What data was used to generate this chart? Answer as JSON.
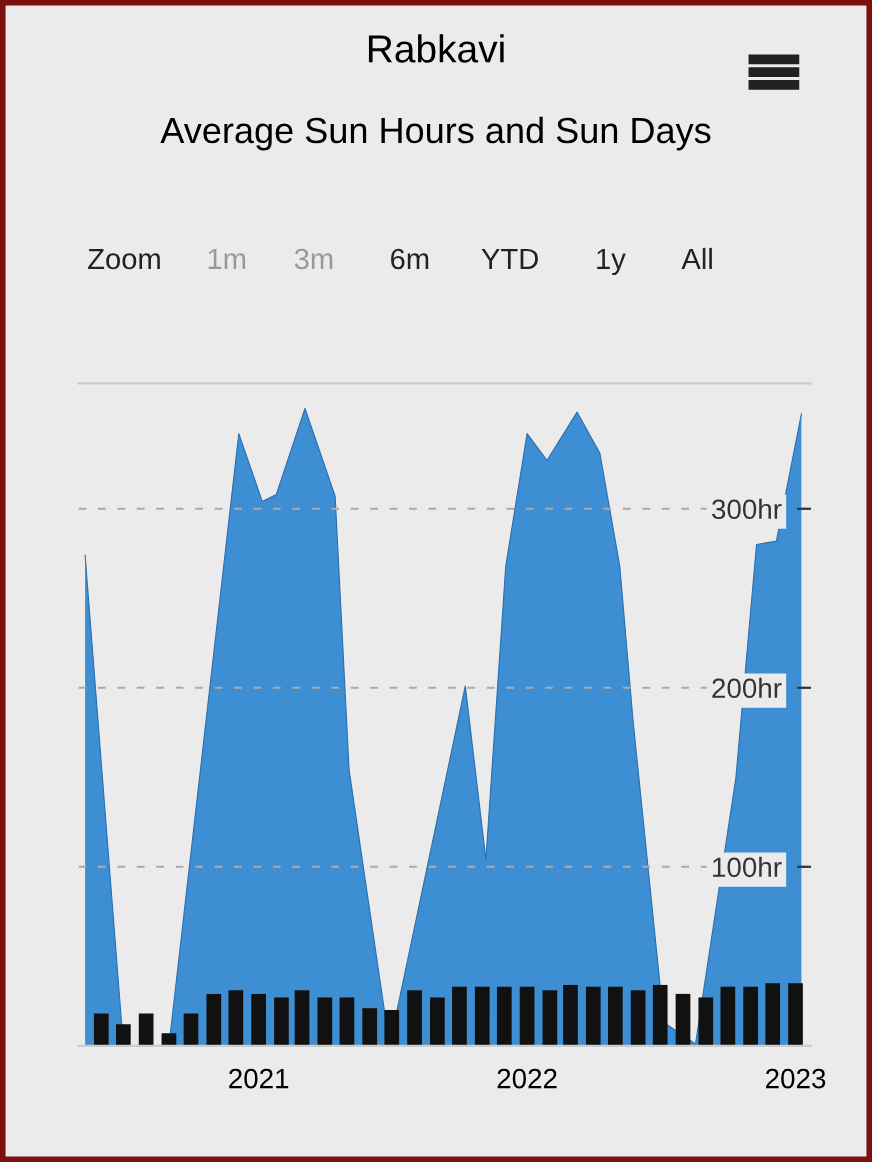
{
  "chart_data": {
    "type": "area",
    "title": "Rabkavi",
    "subtitle": "Average Sun Hours and Sun Days",
    "annotations": [
      "Zoom",
      "1m",
      "3m",
      "6m",
      "YTD",
      "1y",
      "All"
    ],
    "series": [
      {
        "color": "#3d8ed3",
        "x": [
          "2020-05-10",
          "2020-07-01",
          "2020-09-01",
          "2020-12-05",
          "2021-01-06",
          "2021-01-25",
          "2021-03-05",
          "2021-04-15",
          "2021-05-04",
          "2021-06-28",
          "2021-10-09",
          "2021-11-06",
          "2021-12-03",
          "2022-01-01",
          "2022-01-28",
          "2022-03-10",
          "2022-04-10",
          "2022-05-07",
          "2022-05-25",
          "2022-07-06",
          "2022-08-18",
          "2022-10-12",
          "2022-11-09",
          "2022-12-06",
          "2023-01-09"
        ],
        "values": [
          274,
          0,
          0,
          342,
          304,
          308,
          356,
          307,
          154,
          0,
          201,
          104,
          268,
          342,
          327,
          354,
          331,
          268,
          182,
          13,
          1,
          150,
          280,
          282,
          353
        ]
      },
      {
        "type": "bar",
        "color": "#111111",
        "x": [
          "2020-06-01",
          "2020-07-01",
          "2020-08-01",
          "2020-09-01",
          "2020-10-01",
          "2020-11-01",
          "2020-12-01",
          "2021-01-01",
          "2021-02-01",
          "2021-03-01",
          "2021-04-01",
          "2021-05-01",
          "2021-06-01",
          "2021-07-01",
          "2021-08-01",
          "2021-09-01",
          "2021-10-01",
          "2021-11-01",
          "2021-12-01",
          "2022-01-01",
          "2022-02-01",
          "2022-03-01",
          "2022-04-01",
          "2022-05-01",
          "2022-06-01",
          "2022-07-01",
          "2022-08-01",
          "2022-09-01",
          "2022-10-01",
          "2022-11-01",
          "2022-12-01",
          "2023-01-01"
        ],
        "values": [
          18,
          12,
          18,
          7,
          18,
          29,
          31,
          29,
          27,
          31,
          27,
          27,
          21,
          20,
          31,
          27,
          33,
          33,
          33,
          33,
          31,
          34,
          33,
          33,
          31,
          34,
          29,
          27,
          33,
          33,
          35,
          35
        ]
      }
    ],
    "xlim": [
      "2020-05-01",
      "2023-01-22"
    ],
    "xticks": [
      {
        "value": "2021-01-01",
        "label": "2021"
      },
      {
        "value": "2022-01-01",
        "label": "2022"
      },
      {
        "value": "2023-01-01",
        "label": "2023"
      }
    ],
    "ylim": [
      0,
      370
    ],
    "yticks": [
      {
        "value": 100,
        "label": "100hr"
      },
      {
        "value": 200,
        "label": "200hr"
      },
      {
        "value": 300,
        "label": "300hr"
      }
    ],
    "grid": "y",
    "legend": false
  }
}
